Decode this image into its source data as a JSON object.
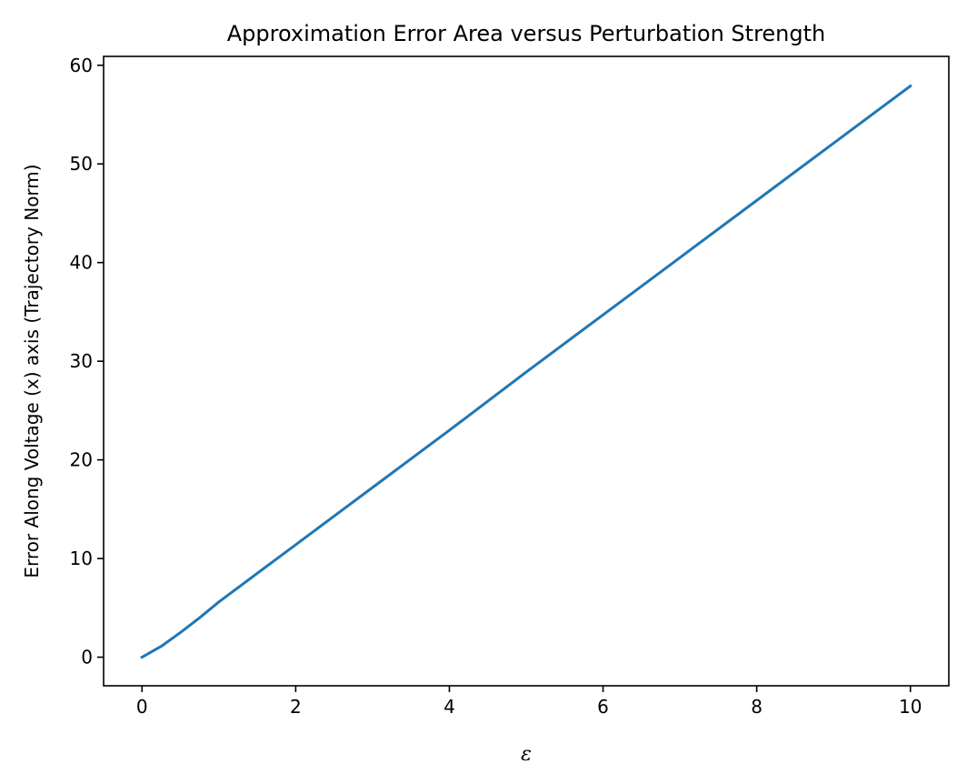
{
  "chart_data": {
    "type": "line",
    "title": "Approximation Error Area versus Perturbation Strength",
    "xlabel": "ε",
    "ylabel": "Error Along Voltage (x) axis (Trajectory Norm)",
    "xlim": [
      -0.5,
      10.5
    ],
    "ylim": [
      -2.9,
      60.9
    ],
    "xticks": [
      0,
      2,
      4,
      6,
      8,
      10
    ],
    "yticks": [
      0,
      10,
      20,
      30,
      40,
      50,
      60
    ],
    "grid": false,
    "series": [
      {
        "color": "#1f77b4",
        "x": [
          0,
          0.25,
          0.5,
          0.75,
          1,
          1.5,
          2,
          3,
          4,
          5,
          6,
          7,
          8,
          9,
          10
        ],
        "y": [
          0,
          1.1,
          2.5,
          4.0,
          5.6,
          8.5,
          11.4,
          17.2,
          23.0,
          28.9,
          34.7,
          40.5,
          46.3,
          52.1,
          57.9
        ]
      }
    ]
  }
}
